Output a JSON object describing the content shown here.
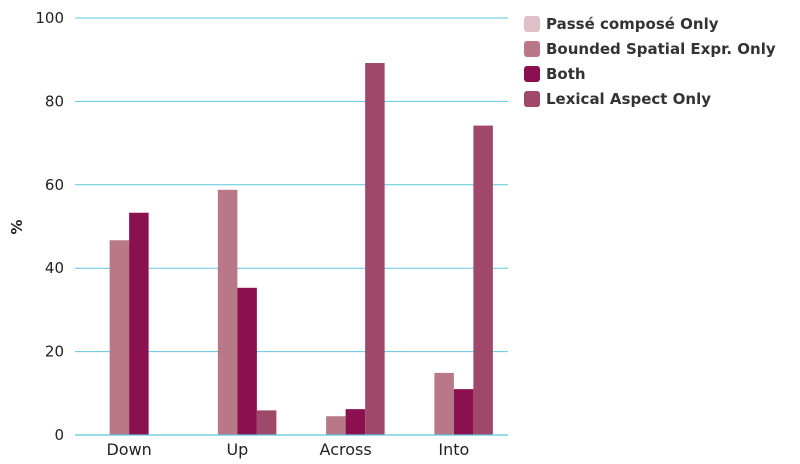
{
  "chart_data": {
    "type": "bar",
    "title": "",
    "xlabel": "",
    "ylabel": "%",
    "ylim": [
      0,
      100
    ],
    "yticks": [
      0,
      20,
      40,
      60,
      80,
      100
    ],
    "grid": true,
    "legend_position": "top-right",
    "categories": [
      "Down",
      "Up",
      "Across",
      "Into"
    ],
    "series": [
      {
        "name": "Passé composé Only",
        "color": "#e2c0c9",
        "values": [
          0,
          0,
          0,
          0
        ]
      },
      {
        "name": "Bounded Spatial Expr. Only",
        "color": "#b87888",
        "values": [
          46.7,
          58.8,
          4.5,
          14.9
        ]
      },
      {
        "name": "Both",
        "color": "#8b1050",
        "values": [
          53.3,
          35.3,
          6.2,
          11.0
        ]
      },
      {
        "name": "Lexical Aspect Only",
        "color": "#a0486a",
        "values": [
          0,
          5.9,
          89.2,
          74.2
        ]
      }
    ]
  }
}
